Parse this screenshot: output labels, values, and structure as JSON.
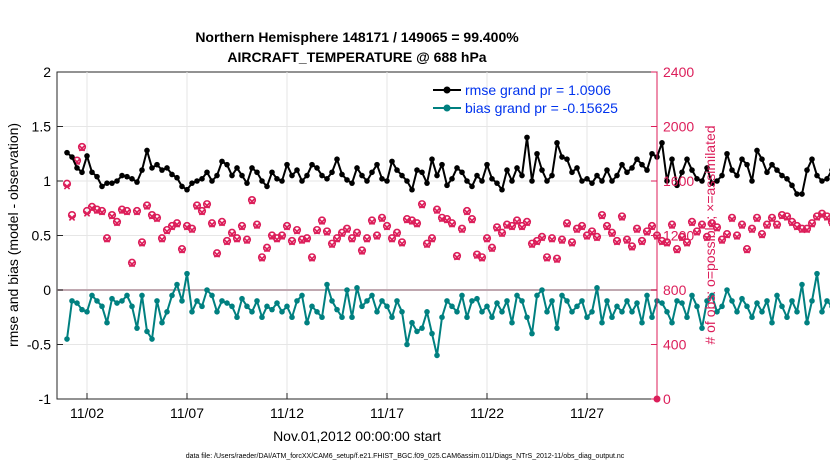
{
  "chart_data": {
    "type": "line",
    "title_line1": "Northern Hemisphere 148171 / 149065 = 99.400%",
    "title_line2": "AIRCRAFT_TEMPERATURE @ 688 hPa",
    "xlabel": "Nov.01,2012 00:00:00 start",
    "ylabel_left": "rmse and bias (model - observation)",
    "ylabel_right": "# of obs: o=possible; ×=assimilated",
    "footnote": "data file: /Users/raeder/DAI/ATM_forcXX/CAM6_setup/f.e21.FHIST_BGC.f09_025.CAM6assim.011/Diags_NTrS_2012-11/obs_diag_output.nc",
    "x_range": [
      0.5,
      30.5
    ],
    "y_left_range": [
      -1,
      2
    ],
    "y_right_range": [
      0,
      2400
    ],
    "x_ticks": [
      {
        "day": 2,
        "label": "11/02"
      },
      {
        "day": 7,
        "label": "11/07"
      },
      {
        "day": 12,
        "label": "11/12"
      },
      {
        "day": 17,
        "label": "11/17"
      },
      {
        "day": 22,
        "label": "11/22"
      },
      {
        "day": 27,
        "label": "11/27"
      }
    ],
    "y_left_ticks": [
      {
        "value": -1,
        "label": "-1"
      },
      {
        "value": -0.5,
        "label": "-0.5"
      },
      {
        "value": 0,
        "label": "0"
      },
      {
        "value": 0.5,
        "label": "0.5"
      },
      {
        "value": 1,
        "label": "1"
      },
      {
        "value": 1.5,
        "label": "1.5"
      },
      {
        "value": 2,
        "label": "2"
      }
    ],
    "y_right_ticks": [
      {
        "value": 0,
        "label": "0"
      },
      {
        "value": 400,
        "label": "400"
      },
      {
        "value": 800,
        "label": "800"
      },
      {
        "value": 1200,
        "label": "1200"
      },
      {
        "value": 1600,
        "label": "1600"
      },
      {
        "value": 2000,
        "label": "2000"
      },
      {
        "value": 2400,
        "label": "2400"
      }
    ],
    "x_start": 1.0,
    "x_step": 0.25,
    "series": [
      {
        "name": "rmse grand pr = 1.0906",
        "color": "#000000",
        "axis": "left",
        "values": [
          1.26,
          1.22,
          1.12,
          1.08,
          1.23,
          1.08,
          1.04,
          0.95,
          0.98,
          0.98,
          1.0,
          1.05,
          1.04,
          1.02,
          0.99,
          1.1,
          1.28,
          1.12,
          1.15,
          1.1,
          1.12,
          1.06,
          1.03,
          0.95,
          0.92,
          0.98,
          1.0,
          1.02,
          1.08,
          1.0,
          1.05,
          1.18,
          1.15,
          1.05,
          1.12,
          1.05,
          0.98,
          1.12,
          1.08,
          1.0,
          0.95,
          1.08,
          1.02,
          1.0,
          1.15,
          1.05,
          1.1,
          1.0,
          1.05,
          1.15,
          1.12,
          1.05,
          1.02,
          1.08,
          1.2,
          1.06,
          1.01,
          0.98,
          1.12,
          1.05,
          1.0,
          1.08,
          1.15,
          1.02,
          1.0,
          1.18,
          1.1,
          1.05,
          1.0,
          0.92,
          1.1,
          1.08,
          0.98,
          1.2,
          1.05,
          1.15,
          0.96,
          1.02,
          1.12,
          1.08,
          1.0,
          0.95,
          1.05,
          1.0,
          1.15,
          1.02,
          0.98,
          0.92,
          1.1,
          1.0,
          1.12,
          1.05,
          1.4,
          1.0,
          1.25,
          1.1,
          1.0,
          1.05,
          1.35,
          1.22,
          1.2,
          1.08,
          1.12,
          1.0,
          1.02,
          0.98,
          1.05,
          1.0,
          1.1,
          1.0,
          1.05,
          1.15,
          1.08,
          1.12,
          1.2,
          1.15,
          1.1,
          1.25,
          1.22,
          1.35,
          1.0,
          1.2,
          0.96,
          1.08,
          1.2,
          1.1,
          1.02,
          1.0,
          1.12,
          0.98,
          1.0,
          1.05,
          1.25,
          1.1,
          1.05,
          1.2,
          1.15,
          1.0,
          1.28,
          1.2,
          1.08,
          1.15,
          1.1,
          1.05,
          1.02,
          0.96,
          0.88,
          0.88,
          1.1,
          1.2,
          1.05,
          1.0,
          1.02,
          1.1,
          1.15,
          1.4,
          1.3,
          1.2,
          1.28,
          1.25,
          1.12,
          1.1,
          1.2,
          1.15,
          1.0
        ]
      },
      {
        "name": "bias grand pr = -0.15625",
        "color": "#008080",
        "axis": "left",
        "values": [
          -0.45,
          -0.1,
          -0.12,
          -0.18,
          -0.2,
          -0.05,
          -0.1,
          -0.15,
          -0.3,
          -0.08,
          -0.12,
          -0.1,
          -0.05,
          -0.15,
          -0.35,
          -0.05,
          -0.38,
          -0.45,
          -0.1,
          -0.3,
          -0.2,
          -0.05,
          0.05,
          -0.1,
          0.15,
          -0.2,
          -0.1,
          -0.15,
          0.0,
          -0.05,
          -0.2,
          -0.1,
          -0.12,
          -0.15,
          -0.25,
          -0.08,
          -0.15,
          -0.2,
          -0.1,
          -0.25,
          -0.15,
          -0.18,
          -0.12,
          -0.2,
          -0.15,
          -0.25,
          -0.1,
          -0.05,
          -0.3,
          -0.15,
          -0.2,
          -0.25,
          0.05,
          -0.1,
          -0.18,
          -0.25,
          0.0,
          -0.25,
          0.02,
          -0.15,
          -0.1,
          -0.05,
          -0.2,
          -0.1,
          -0.15,
          -0.25,
          -0.1,
          -0.2,
          -0.5,
          -0.3,
          -0.38,
          -0.35,
          -0.2,
          -0.4,
          -0.6,
          -0.25,
          -0.1,
          -0.15,
          -0.2,
          -0.05,
          -0.25,
          -0.1,
          -0.08,
          -0.2,
          -0.15,
          -0.25,
          -0.12,
          -0.2,
          -0.1,
          -0.3,
          -0.05,
          -0.1,
          -0.25,
          -0.4,
          -0.05,
          0.0,
          -0.2,
          -0.1,
          -0.35,
          -0.05,
          -0.1,
          -0.2,
          -0.15,
          -0.1,
          -0.25,
          -0.2,
          0.02,
          -0.3,
          -0.1,
          -0.25,
          -0.15,
          -0.2,
          -0.1,
          -0.2,
          -0.12,
          -0.3,
          -0.05,
          -0.25,
          -0.1,
          -0.12,
          -0.2,
          -0.3,
          -0.1,
          -0.12,
          -0.25,
          -0.05,
          -0.15,
          -0.35,
          -0.1,
          -0.05,
          -0.2,
          -0.15,
          0.0,
          -0.1,
          -0.2,
          -0.08,
          -0.15,
          -0.25,
          -0.12,
          -0.2,
          -0.1,
          -0.3,
          -0.05,
          -0.15,
          -0.25,
          -0.1,
          -0.2,
          0.05,
          -0.3,
          -0.1,
          0.15,
          -0.2,
          -0.1,
          -0.15,
          0.0,
          -0.1,
          -0.15,
          0.1,
          -0.2,
          -0.1,
          -0.05,
          -0.15,
          -0.1,
          -0.2,
          -0.05,
          -0.25,
          -0.1,
          -0.05
        ]
      },
      {
        "name": "possible obs count",
        "color": "#dc1e5a",
        "axis": "right",
        "marker": "o",
        "values": [
          1580,
          1350,
          1750,
          1850,
          1380,
          1410,
          1390,
          1380,
          1180,
          1350,
          1300,
          1390,
          1380,
          1000,
          1380,
          1150,
          1420,
          1350,
          1330,
          1180,
          1240,
          1270,
          1290,
          1100,
          1270,
          1250,
          1420,
          1380,
          1430,
          1290,
          1070,
          1300,
          1160,
          1220,
          1180,
          1270,
          1170,
          1460,
          1280,
          1040,
          1110,
          1200,
          1180,
          1200,
          1270,
          1160,
          1240,
          1170,
          1180,
          1040,
          1240,
          1310,
          1230,
          1140,
          1180,
          1220,
          1250,
          1180,
          1220,
          1090,
          1180,
          1310,
          1200,
          1330,
          1270,
          1180,
          1220,
          1150,
          1320,
          1310,
          1290,
          1430,
          1140,
          1180,
          1390,
          1330,
          1320,
          1290,
          1050,
          1250,
          1380,
          1320,
          1060,
          1040,
          1180,
          1110,
          1260,
          1220,
          1280,
          1270,
          1310,
          1270,
          1300,
          1140,
          1160,
          1190,
          1040,
          1180,
          1030,
          1170,
          1290,
          1150,
          1250,
          1270,
          1200,
          1230,
          1190,
          1350,
          1270,
          1220,
          1160,
          1340,
          1170,
          1120,
          1250,
          1160,
          1230,
          1270,
          1200,
          1160,
          1150,
          1280,
          1100,
          1190,
          1150,
          1300,
          1230,
          1280,
          1190,
          1290,
          1260,
          1170,
          1210,
          1330,
          1200,
          1280,
          1100,
          1250,
          1330,
          1210,
          1280,
          1330,
          1280,
          1350,
          1340,
          1300,
          1270,
          1250,
          1250,
          1290,
          1340,
          1360,
          1340,
          1300,
          1280,
          1350,
          1310,
          1310,
          1320,
          1280,
          1360,
          1290,
          1370,
          1320,
          1240,
          1260,
          1320,
          1230,
          1260,
          1230
        ]
      },
      {
        "name": "assimilated obs count",
        "color": "#dc1e5a",
        "axis": "right",
        "marker": "x",
        "values": [
          1560,
          1330,
          1740,
          1840,
          1360,
          1400,
          1380,
          1370,
          1170,
          1340,
          1290,
          1380,
          1370,
          990,
          1370,
          1140,
          1410,
          1340,
          1320,
          1170,
          1230,
          1260,
          1280,
          1090,
          1260,
          1240,
          1410,
          1370,
          1420,
          1280,
          1060,
          1290,
          1150,
          1210,
          1170,
          1260,
          1160,
          1450,
          1270,
          1030,
          1100,
          1190,
          1170,
          1190,
          1260,
          1150,
          1230,
          1160,
          1170,
          1030,
          1230,
          1300,
          1220,
          1130,
          1170,
          1210,
          1240,
          1170,
          1210,
          1080,
          1170,
          1300,
          1190,
          1320,
          1260,
          1170,
          1210,
          1140,
          1310,
          1300,
          1280,
          1420,
          1130,
          1170,
          1380,
          1320,
          1310,
          1280,
          1040,
          1240,
          1370,
          1310,
          1050,
          1030,
          1170,
          1100,
          1250,
          1210,
          1270,
          1260,
          1300,
          1260,
          1290,
          1130,
          1150,
          1180,
          1030,
          1170,
          1020,
          1160,
          1280,
          1140,
          1240,
          1260,
          1190,
          1220,
          1180,
          1340,
          1260,
          1210,
          1150,
          1330,
          1160,
          1110,
          1240,
          1150,
          1220,
          1260,
          1190,
          1150,
          1140,
          1270,
          1090,
          1180,
          1140,
          1290,
          1220,
          1270,
          1180,
          1280,
          1250,
          1160,
          1200,
          1320,
          1190,
          1270,
          1090,
          1240,
          1320,
          1200,
          1270,
          1320,
          1270,
          1340,
          1330,
          1290,
          1260,
          1240,
          1240,
          1280,
          1330,
          1350,
          1330,
          1290,
          1270,
          1340,
          1300,
          1300,
          1310,
          1270,
          1350,
          1280,
          1360,
          1310,
          1230,
          1250,
          1310,
          1220,
          1250,
          1220
        ]
      }
    ],
    "legend_position": "top-right",
    "zero_line_color": "#c0a8b0"
  }
}
